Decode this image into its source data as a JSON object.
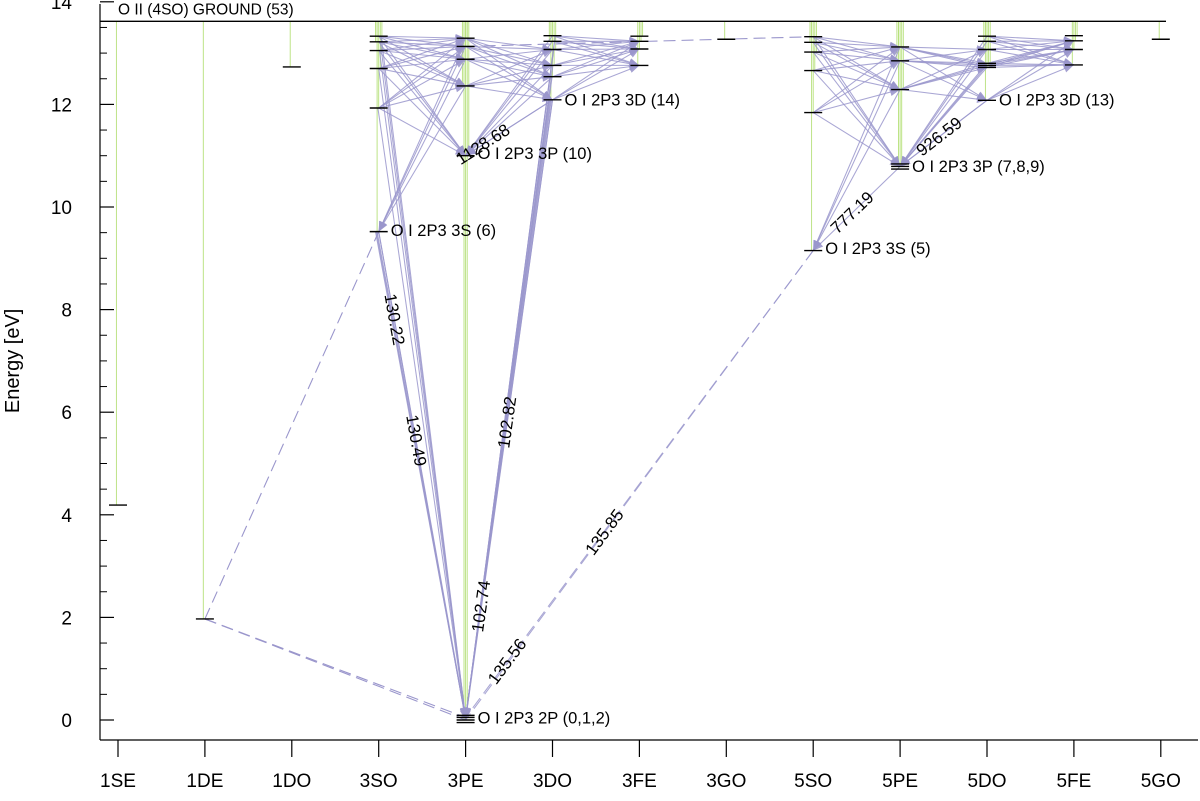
{
  "chart_data": {
    "type": "grotrian",
    "ylabel": "Energy [eV]",
    "ylim": [
      -0.35,
      14.0
    ],
    "yticks": [
      0,
      2,
      4,
      6,
      8,
      10,
      12,
      14
    ],
    "columns": [
      "1SE",
      "1DE",
      "1DO",
      "3SO",
      "3PE",
      "3DO",
      "3FE",
      "3GO",
      "5SO",
      "5PE",
      "5DO",
      "5FE",
      "5GO"
    ],
    "ionization": {
      "label": "O II (4SO) GROUND (53)",
      "energy": 13.62
    },
    "level_labels": [
      {
        "column": "3PE",
        "energy": 0.05,
        "label": "O I 2P3 2P (0,1,2)"
      },
      {
        "column": "3SO",
        "energy": 9.55,
        "label": "O I 2P3 3S (6)"
      },
      {
        "column": "3PE",
        "energy": 11.05,
        "label": "O I 2P3 3P (10)"
      },
      {
        "column": "3DO",
        "energy": 12.1,
        "label": "O I 2P3 3D (14)"
      },
      {
        "column": "5SO",
        "energy": 9.2,
        "label": "O I 2P3 3S (5)"
      },
      {
        "column": "5PE",
        "energy": 10.8,
        "label": "O I 2P3 3P (7,8,9)"
      },
      {
        "column": "5DO",
        "energy": 12.1,
        "label": "O I 2P3 3D (13)"
      }
    ],
    "levels": [
      {
        "column": "1SE",
        "energy": 4.19
      },
      {
        "column": "1DE",
        "energy": 1.97
      },
      {
        "column": "1DO",
        "energy": 12.73
      },
      {
        "column": "3SO",
        "energy": 9.52
      },
      {
        "column": "3SO",
        "energy": 11.93
      },
      {
        "column": "3SO",
        "energy": 12.7
      },
      {
        "column": "3SO",
        "energy": 13.05
      },
      {
        "column": "3SO",
        "energy": 13.22
      },
      {
        "column": "3SO",
        "energy": 13.33
      },
      {
        "column": "3PE",
        "energy": 0.0
      },
      {
        "column": "3PE",
        "energy": 0.05
      },
      {
        "column": "3PE",
        "energy": 0.09
      },
      {
        "column": "3PE",
        "energy": 11.0
      },
      {
        "column": "3PE",
        "energy": 12.36
      },
      {
        "column": "3PE",
        "energy": 12.88
      },
      {
        "column": "3PE",
        "energy": 13.13
      },
      {
        "column": "3PE",
        "energy": 13.29
      },
      {
        "column": "3DO",
        "energy": 12.09
      },
      {
        "column": "3DO",
        "energy": 12.54
      },
      {
        "column": "3DO",
        "energy": 12.76
      },
      {
        "column": "3DO",
        "energy": 13.07
      },
      {
        "column": "3DO",
        "energy": 13.23
      },
      {
        "column": "3DO",
        "energy": 13.34
      },
      {
        "column": "3FE",
        "energy": 12.76
      },
      {
        "column": "3FE",
        "energy": 13.08
      },
      {
        "column": "3FE",
        "energy": 13.23
      },
      {
        "column": "3FE",
        "energy": 13.33
      },
      {
        "column": "3GO",
        "energy": 13.27
      },
      {
        "column": "5SO",
        "energy": 9.15
      },
      {
        "column": "5SO",
        "energy": 11.84
      },
      {
        "column": "5SO",
        "energy": 12.66
      },
      {
        "column": "5SO",
        "energy": 13.02
      },
      {
        "column": "5SO",
        "energy": 13.21
      },
      {
        "column": "5SO",
        "energy": 13.32
      },
      {
        "column": "5PE",
        "energy": 10.74
      },
      {
        "column": "5PE",
        "energy": 10.79
      },
      {
        "column": "5PE",
        "energy": 10.84
      },
      {
        "column": "5PE",
        "energy": 12.29
      },
      {
        "column": "5PE",
        "energy": 12.85
      },
      {
        "column": "5PE",
        "energy": 13.12
      },
      {
        "column": "5DO",
        "energy": 12.08
      },
      {
        "column": "5DO",
        "energy": 12.72
      },
      {
        "column": "5DO",
        "energy": 12.76
      },
      {
        "column": "5DO",
        "energy": 12.8
      },
      {
        "column": "5DO",
        "energy": 13.07
      },
      {
        "column": "5DO",
        "energy": 13.23
      },
      {
        "column": "5DO",
        "energy": 13.33
      },
      {
        "column": "5FE",
        "energy": 12.77
      },
      {
        "column": "5FE",
        "energy": 13.07
      },
      {
        "column": "5FE",
        "energy": 13.24
      },
      {
        "column": "5FE",
        "energy": 13.34
      },
      {
        "column": "5GO",
        "energy": 13.27
      }
    ],
    "labeled_transitions": [
      {
        "label": "130.22",
        "from": [
          "3SO",
          9.52
        ],
        "to": [
          "3PE",
          0.0
        ]
      },
      {
        "label": "130.49",
        "from": [
          "3SO",
          9.52
        ],
        "to": [
          "3PE",
          0.05
        ]
      },
      {
        "label": "102.82",
        "from": [
          "3DO",
          12.09
        ],
        "to": [
          "3PE",
          0.0
        ]
      },
      {
        "label": "102.74",
        "from": [
          "3DO",
          12.09
        ],
        "to": [
          "3PE",
          0.05
        ]
      },
      {
        "label": "1128.68",
        "from": [
          "3DO",
          12.09
        ],
        "to": [
          "3PE",
          11.0
        ]
      },
      {
        "label": "135.85",
        "from": [
          "5SO",
          9.15
        ],
        "to": [
          "3PE",
          0.0
        ]
      },
      {
        "label": "135.56",
        "from": [
          "5SO",
          9.15
        ],
        "to": [
          "3PE",
          0.05
        ]
      },
      {
        "label": "777.19",
        "from": [
          "5PE",
          10.79
        ],
        "to": [
          "5SO",
          9.15
        ]
      },
      {
        "label": "926.59",
        "from": [
          "5DO",
          12.08
        ],
        "to": [
          "5PE",
          10.79
        ]
      }
    ],
    "forbidden_transitions": [
      {
        "from": [
          "1DE",
          1.97
        ],
        "to": [
          "3PE",
          0.0
        ]
      },
      {
        "from": [
          "1DE",
          1.97
        ],
        "to": [
          "3PE",
          0.05
        ]
      },
      {
        "from": [
          "1DE",
          1.97
        ],
        "to": [
          "3SO",
          9.52
        ]
      },
      {
        "from": [
          "3PE",
          13.13
        ],
        "to": [
          "5SO",
          13.32
        ]
      }
    ],
    "colors": {
      "transition": "#9a96cc",
      "autoionization": "#b6e07a",
      "level": "#000000",
      "axis": "#000000"
    }
  }
}
